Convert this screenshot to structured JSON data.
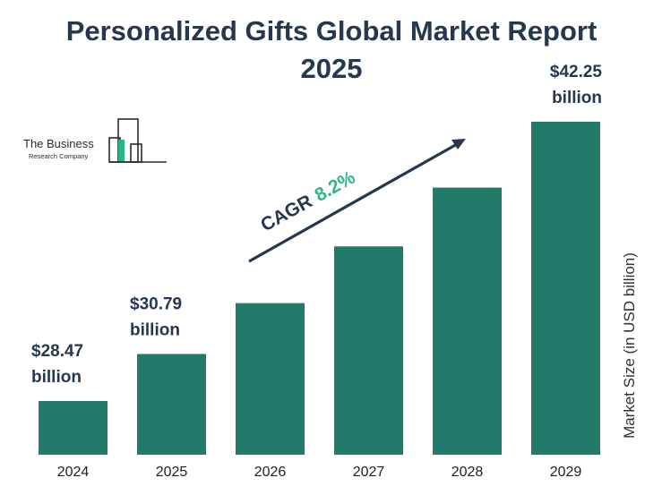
{
  "title": "Personalized Gifts Global Market Report 2025",
  "logo": {
    "name": "The Business",
    "subtitle": "Research Company"
  },
  "annotation": {
    "cagr_label": "CAGR",
    "cagr_value": "8.2%"
  },
  "colors": {
    "bar": "#227a6a",
    "title": "#25384f",
    "accent": "#2bb58a",
    "arrow": "#25384f"
  },
  "chart_data": {
    "type": "bar",
    "title": "Personalized Gifts Global Market Report 2025",
    "categories": [
      "2024",
      "2025",
      "2026",
      "2027",
      "2028",
      "2029"
    ],
    "values": [
      28.47,
      30.79,
      33.3,
      36.1,
      39.0,
      42.25
    ],
    "data_labels": [
      {
        "category": "2024",
        "line1": "$28.47",
        "line2": "billion"
      },
      {
        "category": "2025",
        "line1": "$30.79",
        "line2": "billion"
      },
      {
        "category": "2029",
        "line1": "$42.25",
        "line2": "billion"
      }
    ],
    "xlabel": "",
    "ylabel": "Market Size (in USD billion)",
    "legend": "none",
    "grid": false
  }
}
